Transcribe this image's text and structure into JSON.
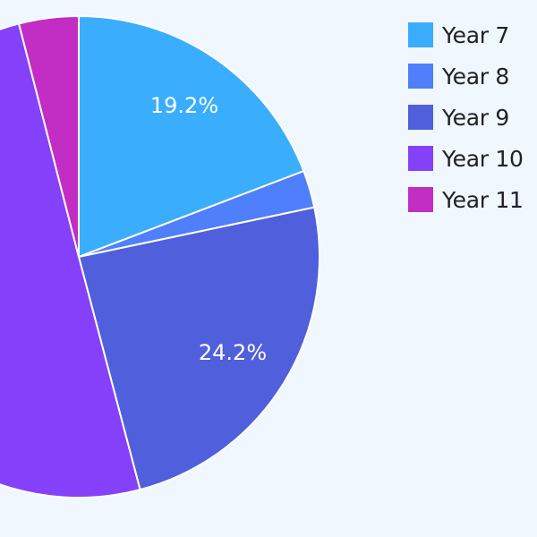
{
  "chart_data": {
    "type": "pie",
    "title": "",
    "categories": [
      "Year 7",
      "Year 8",
      "Year 9",
      "Year 10",
      "Year 11"
    ],
    "values": [
      19.2,
      2.5,
      24.2,
      50.1,
      4.0
    ],
    "colors": [
      "#3aaefc",
      "#4f7ffb",
      "#505fdb",
      "#8540f9",
      "#c22dc4"
    ],
    "data_labels": [
      "19.2%",
      "",
      "24.2%",
      "",
      ""
    ],
    "legend_position": "top-right",
    "start_angle_deg": 0,
    "direction": "clockwise"
  },
  "legend": {
    "items": [
      {
        "label": "Year 7",
        "color": "#3aaefc"
      },
      {
        "label": "Year 8",
        "color": "#4f7ffb"
      },
      {
        "label": "Year 9",
        "color": "#505fdb"
      },
      {
        "label": "Year 10",
        "color": "#8540f9"
      },
      {
        "label": "Year 11",
        "color": "#c22dc4"
      }
    ]
  },
  "labels": {
    "year7_pct": "19.2%",
    "year9_pct": "24.2%"
  }
}
